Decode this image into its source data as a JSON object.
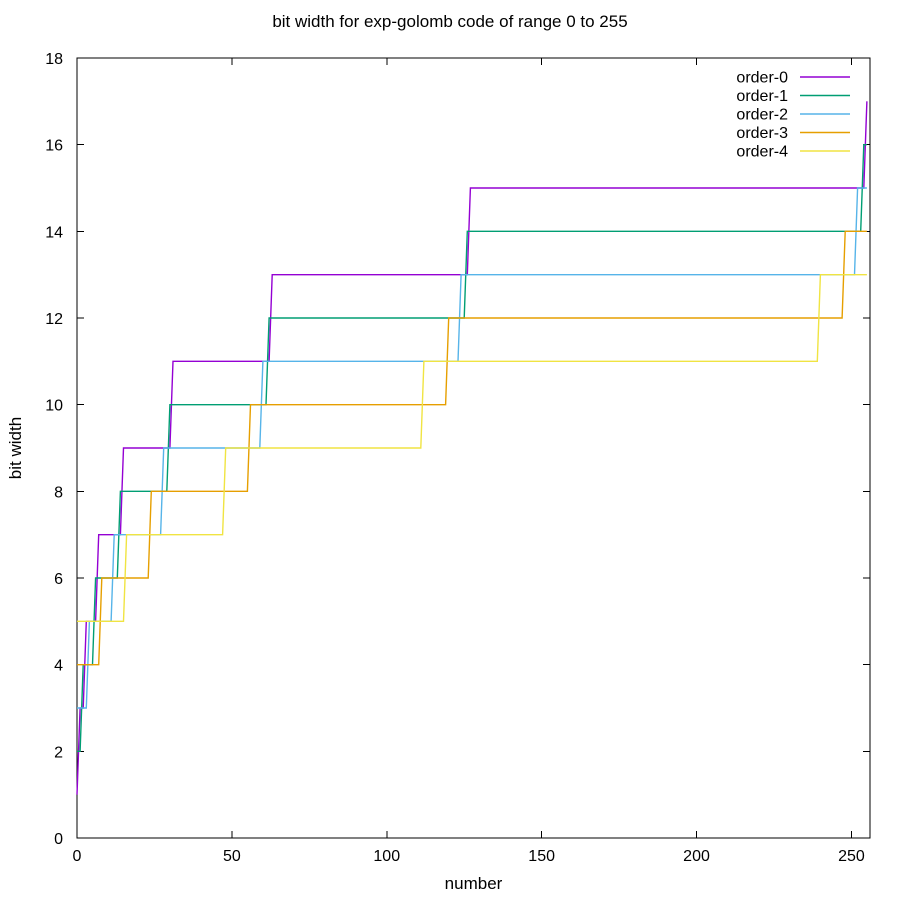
{
  "chart_data": {
    "type": "line",
    "style": "step-function drawn with lines (gnuplot style)",
    "title": "bit width for exp-golomb code of range 0 to 255",
    "xlabel": "number",
    "ylabel": "bit width",
    "xlim": [
      0,
      256
    ],
    "ylim": [
      0,
      18
    ],
    "x_end": 255,
    "x_ticks": [
      0,
      50,
      100,
      150,
      200,
      250
    ],
    "y_ticks": [
      0,
      2,
      4,
      6,
      8,
      10,
      12,
      14,
      16,
      18
    ],
    "grid": false,
    "legend_position": "top-right-inside",
    "axis_color": "#000000",
    "background": "#ffffff",
    "steps_format": "each entry is [start_number, bit_width]; level holds until next entry start - 1; last level holds to x_end",
    "series": [
      {
        "name": "order-0",
        "color": "#9400d3",
        "steps": [
          [
            0,
            1
          ],
          [
            1,
            3
          ],
          [
            3,
            5
          ],
          [
            7,
            7
          ],
          [
            15,
            9
          ],
          [
            31,
            11
          ],
          [
            63,
            13
          ],
          [
            127,
            15
          ],
          [
            255,
            17
          ]
        ]
      },
      {
        "name": "order-1",
        "color": "#009e73",
        "steps": [
          [
            0,
            2
          ],
          [
            2,
            4
          ],
          [
            6,
            6
          ],
          [
            14,
            8
          ],
          [
            30,
            10
          ],
          [
            62,
            12
          ],
          [
            126,
            14
          ],
          [
            254,
            16
          ]
        ]
      },
      {
        "name": "order-2",
        "color": "#56b4e9",
        "steps": [
          [
            0,
            3
          ],
          [
            4,
            5
          ],
          [
            12,
            7
          ],
          [
            28,
            9
          ],
          [
            60,
            11
          ],
          [
            124,
            13
          ],
          [
            252,
            15
          ]
        ]
      },
      {
        "name": "order-3",
        "color": "#e69f00",
        "steps": [
          [
            0,
            4
          ],
          [
            8,
            6
          ],
          [
            24,
            8
          ],
          [
            56,
            10
          ],
          [
            120,
            12
          ],
          [
            248,
            14
          ]
        ]
      },
      {
        "name": "order-4",
        "color": "#f0e442",
        "steps": [
          [
            0,
            5
          ],
          [
            16,
            7
          ],
          [
            48,
            9
          ],
          [
            112,
            11
          ],
          [
            240,
            13
          ]
        ]
      }
    ]
  }
}
